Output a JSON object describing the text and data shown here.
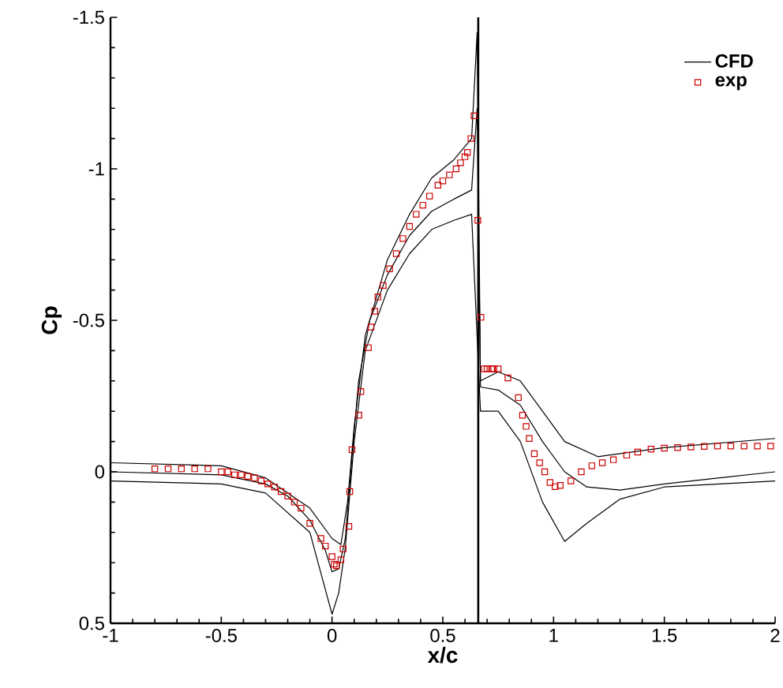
{
  "chart_data": {
    "type": "line",
    "xlabel": "x/c",
    "ylabel": "Cp",
    "xlim": [
      -1,
      2
    ],
    "ylim": [
      0.5,
      -1.5
    ],
    "xticks": [
      -1,
      -0.5,
      0,
      0.5,
      1,
      1.5,
      2
    ],
    "yticks": [
      -1.5,
      -1,
      -0.5,
      0,
      0.5
    ],
    "grid": false,
    "legend": "top right",
    "marker": "none",
    "line_style": "solid",
    "ref_lines": [
      {
        "axis": "x",
        "value": 0.66,
        "color": "#000000"
      }
    ],
    "series": [
      {
        "name": "CFD",
        "color": "#000000",
        "x": [
          -1,
          -0.5,
          -0.3,
          -0.2,
          -0.1,
          -0.03,
          0,
          0.03,
          0.06,
          0.09,
          0.12,
          0.17,
          0.25,
          0.35,
          0.45,
          0.55,
          0.63,
          0.655,
          0.67,
          0.75,
          0.85,
          0.95,
          1.05,
          1.15,
          1.3,
          1.5,
          1.75,
          2
        ],
        "values": [
          0,
          0.01,
          0.04,
          0.08,
          0.16,
          0.26,
          0.33,
          0.32,
          0.22,
          -0.05,
          -0.3,
          -0.5,
          -0.65,
          -0.78,
          -0.86,
          -0.9,
          -0.93,
          -1.2,
          -0.28,
          -0.27,
          -0.22,
          -0.1,
          0,
          0.05,
          0.06,
          0.04,
          0.02,
          0
        ]
      },
      {
        "color": "#000000",
        "x": [
          -1,
          -0.5,
          -0.3,
          -0.1,
          0,
          0.04,
          0.07,
          0.1,
          0.15,
          0.25,
          0.35,
          0.45,
          0.55,
          0.63,
          0.655,
          0.67,
          0.75,
          0.85,
          0.95,
          1.05,
          1.2,
          1.5,
          2
        ],
        "values": [
          -0.03,
          -0.02,
          0.02,
          0.12,
          0.22,
          0.24,
          0.1,
          -0.15,
          -0.45,
          -0.7,
          -0.85,
          -0.97,
          -1.03,
          -1.1,
          -1.45,
          -0.3,
          -0.33,
          -0.3,
          -0.2,
          -0.1,
          -0.05,
          -0.08,
          -0.11
        ]
      },
      {
        "color": "#000000",
        "x": [
          -1,
          -0.5,
          -0.3,
          -0.1,
          0,
          0.03,
          0.06,
          0.1,
          0.15,
          0.25,
          0.35,
          0.45,
          0.55,
          0.63,
          0.67,
          0.75,
          0.85,
          0.95,
          1.05,
          1.15,
          1.3,
          1.5,
          2
        ],
        "values": [
          0.03,
          0.04,
          0.07,
          0.2,
          0.47,
          0.4,
          0.25,
          -0.1,
          -0.4,
          -0.6,
          -0.72,
          -0.8,
          -0.83,
          -0.85,
          -0.2,
          -0.2,
          -0.1,
          0.1,
          0.23,
          0.17,
          0.09,
          0.05,
          0.03
        ]
      },
      {
        "name": "exp",
        "type": "scatter",
        "marker": "square",
        "color": "#cc0000",
        "x": [
          -0.8,
          -0.74,
          -0.68,
          -0.62,
          -0.56,
          -0.5,
          -0.47,
          -0.44,
          -0.41,
          -0.38,
          -0.35,
          -0.32,
          -0.29,
          -0.26,
          -0.23,
          -0.2,
          -0.17,
          -0.14,
          -0.1,
          -0.05,
          -0.03,
          0,
          0.01,
          0.02,
          0.04,
          0.05,
          0.076,
          0.08,
          0.09,
          0.121,
          0.13,
          0.164,
          0.176,
          0.193,
          0.207,
          0.231,
          0.26,
          0.29,
          0.32,
          0.35,
          0.38,
          0.41,
          0.44,
          0.478,
          0.5,
          0.53,
          0.56,
          0.58,
          0.6,
          0.611,
          0.627,
          0.641,
          0.658,
          0.672,
          0.687,
          0.7,
          0.72,
          0.73,
          0.75,
          0.794,
          0.841,
          0.86,
          0.876,
          0.89,
          0.913,
          0.937,
          0.96,
          0.984,
          1.007,
          1.03,
          1.078,
          1.125,
          1.173,
          1.22,
          1.27,
          1.33,
          1.38,
          1.44,
          1.5,
          1.56,
          1.62,
          1.68,
          1.74,
          1.8,
          1.86,
          1.92,
          1.98
        ],
        "values": [
          -0.01,
          -0.01,
          -0.01,
          -0.01,
          -0.01,
          0,
          0,
          0.01,
          0.01,
          0.015,
          0.02,
          0.03,
          0.04,
          0.05,
          0.065,
          0.08,
          0.1,
          0.12,
          0.17,
          0.22,
          0.245,
          0.28,
          0.305,
          0.31,
          0.29,
          0.255,
          0.18,
          0.065,
          -0.073,
          -0.187,
          -0.265,
          -0.41,
          -0.478,
          -0.53,
          -0.577,
          -0.615,
          -0.67,
          -0.72,
          -0.77,
          -0.81,
          -0.85,
          -0.88,
          -0.91,
          -0.946,
          -0.96,
          -0.98,
          -1,
          -1.02,
          -1.04,
          -1.054,
          -1.1,
          -1.175,
          -0.83,
          -0.51,
          -0.34,
          -0.34,
          -0.34,
          -0.34,
          -0.34,
          -0.31,
          -0.245,
          -0.187,
          -0.15,
          -0.11,
          -0.06,
          -0.03,
          0,
          0.035,
          0.049,
          0.045,
          0.03,
          0,
          -0.02,
          -0.03,
          -0.04,
          -0.055,
          -0.065,
          -0.075,
          -0.078,
          -0.08,
          -0.082,
          -0.084,
          -0.085,
          -0.085,
          -0.085,
          -0.085,
          -0.085
        ]
      }
    ]
  }
}
